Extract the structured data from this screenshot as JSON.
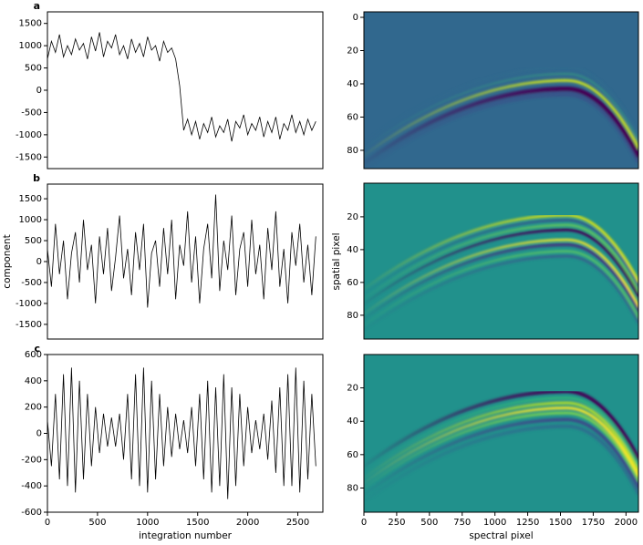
{
  "chart_data": [
    {
      "type": "line",
      "panel_label": "a",
      "color": "#000000",
      "x": [
        0,
        40,
        80,
        120,
        160,
        200,
        240,
        280,
        320,
        360,
        400,
        440,
        480,
        520,
        560,
        600,
        640,
        680,
        720,
        760,
        800,
        840,
        880,
        920,
        960,
        1000,
        1040,
        1080,
        1120,
        1160,
        1200,
        1240,
        1280,
        1320,
        1360,
        1400,
        1440,
        1480,
        1520,
        1560,
        1600,
        1640,
        1680,
        1720,
        1760,
        1800,
        1840,
        1880,
        1920,
        1960,
        2000,
        2040,
        2080,
        2120,
        2160,
        2200,
        2240,
        2280,
        2320,
        2360,
        2400,
        2440,
        2480,
        2520,
        2560,
        2600,
        2640,
        2680
      ],
      "values": [
        700,
        1100,
        850,
        1250,
        750,
        1000,
        800,
        1150,
        900,
        1050,
        700,
        1200,
        880,
        1300,
        750,
        1100,
        950,
        1250,
        800,
        1000,
        700,
        1150,
        850,
        1050,
        750,
        1200,
        900,
        1000,
        650,
        1100,
        850,
        950,
        700,
        100,
        -900,
        -650,
        -1000,
        -700,
        -1100,
        -750,
        -950,
        -600,
        -1050,
        -800,
        -950,
        -650,
        -1150,
        -700,
        -850,
        -550,
        -1000,
        -750,
        -900,
        -600,
        -1050,
        -700,
        -950,
        -600,
        -1100,
        -750,
        -900,
        -550,
        -950,
        -700,
        -1000,
        -650,
        -900,
        -700
      ],
      "xlim": [
        0,
        2750
      ],
      "ylim": [
        -1760,
        1760
      ],
      "yticks": [
        -1500,
        -1000,
        -500,
        0,
        500,
        1000,
        1500
      ]
    },
    {
      "type": "line",
      "panel_label": "b",
      "color": "#000000",
      "ylabel": "component",
      "x": [
        0,
        40,
        80,
        120,
        160,
        200,
        240,
        280,
        320,
        360,
        400,
        440,
        480,
        520,
        560,
        600,
        640,
        680,
        720,
        760,
        800,
        840,
        880,
        920,
        960,
        1000,
        1040,
        1080,
        1120,
        1160,
        1200,
        1240,
        1280,
        1320,
        1360,
        1400,
        1440,
        1480,
        1520,
        1560,
        1600,
        1640,
        1680,
        1720,
        1760,
        1800,
        1840,
        1880,
        1920,
        1960,
        2000,
        2040,
        2080,
        2120,
        2160,
        2200,
        2240,
        2280,
        2320,
        2360,
        2400,
        2440,
        2480,
        2520,
        2560,
        2600,
        2640,
        2680
      ],
      "values": [
        300,
        -600,
        900,
        -300,
        500,
        -900,
        200,
        700,
        -500,
        1000,
        -200,
        400,
        -1000,
        600,
        -300,
        800,
        -700,
        100,
        1100,
        -400,
        300,
        -800,
        700,
        -200,
        900,
        -1100,
        200,
        500,
        -600,
        800,
        -300,
        1000,
        -900,
        400,
        -100,
        1200,
        -500,
        600,
        -1000,
        300,
        900,
        -400,
        1600,
        -700,
        500,
        -200,
        1100,
        -800,
        300,
        700,
        -600,
        1000,
        -300,
        400,
        -900,
        800,
        -200,
        1200,
        -600,
        300,
        -1000,
        700,
        -100,
        900,
        -500,
        400,
        -800,
        600
      ],
      "xlim": [
        0,
        2750
      ],
      "ylim": [
        -1850,
        1850
      ],
      "yticks": [
        -1500,
        -1000,
        -500,
        0,
        500,
        1000,
        1500
      ]
    },
    {
      "type": "line",
      "panel_label": "c",
      "color": "#000000",
      "xlabel": "integration number",
      "x": [
        0,
        40,
        80,
        120,
        160,
        200,
        240,
        280,
        320,
        360,
        400,
        440,
        480,
        520,
        560,
        600,
        640,
        680,
        720,
        760,
        800,
        840,
        880,
        920,
        960,
        1000,
        1040,
        1080,
        1120,
        1160,
        1200,
        1240,
        1280,
        1320,
        1360,
        1400,
        1440,
        1480,
        1520,
        1560,
        1600,
        1640,
        1680,
        1720,
        1760,
        1800,
        1840,
        1880,
        1920,
        1960,
        2000,
        2040,
        2080,
        2120,
        2160,
        2200,
        2240,
        2280,
        2320,
        2360,
        2400,
        2440,
        2480,
        2520,
        2560,
        2600,
        2640,
        2680
      ],
      "values": [
        100,
        -250,
        300,
        -350,
        450,
        -400,
        500,
        -450,
        400,
        -350,
        300,
        -250,
        200,
        -150,
        150,
        -100,
        120,
        -100,
        150,
        -200,
        300,
        -350,
        450,
        -400,
        500,
        -450,
        400,
        -350,
        300,
        -250,
        200,
        -180,
        150,
        -120,
        100,
        -150,
        200,
        -250,
        300,
        -350,
        400,
        -450,
        350,
        -400,
        450,
        -500,
        350,
        -400,
        300,
        -250,
        200,
        -150,
        100,
        -120,
        150,
        -200,
        250,
        -300,
        350,
        -400,
        450,
        -400,
        500,
        -450,
        400,
        -350,
        300,
        -250
      ],
      "xlim": [
        0,
        2750
      ],
      "ylim": [
        -600,
        600
      ],
      "yticks": [
        -600,
        -400,
        -200,
        0,
        200,
        400,
        600
      ],
      "xticks": [
        0,
        500,
        1000,
        1500,
        2000,
        2500
      ]
    },
    {
      "type": "heatmap",
      "background": "#31688e",
      "invert_y": true,
      "xlim": [
        0,
        2095
      ],
      "ylim": [
        -3.3,
        91
      ],
      "yticks": [
        0,
        20,
        40,
        60,
        80
      ]
    },
    {
      "type": "heatmap",
      "background": "#21918c",
      "invert_y": true,
      "ylabel": "spatial pixel",
      "xlim": [
        0,
        2095
      ],
      "ylim": [
        -0.5,
        94.5
      ],
      "yticks": [
        20,
        40,
        60,
        80
      ]
    },
    {
      "type": "heatmap",
      "background": "#21918c",
      "invert_y": true,
      "xlabel": "spectral pixel",
      "xlim": [
        0,
        2095
      ],
      "ylim": [
        0,
        94.5
      ],
      "yticks": [
        20,
        40,
        60,
        80
      ],
      "xticks": [
        0,
        250,
        500,
        750,
        1000,
        1250,
        1500,
        1750,
        2000
      ]
    }
  ]
}
